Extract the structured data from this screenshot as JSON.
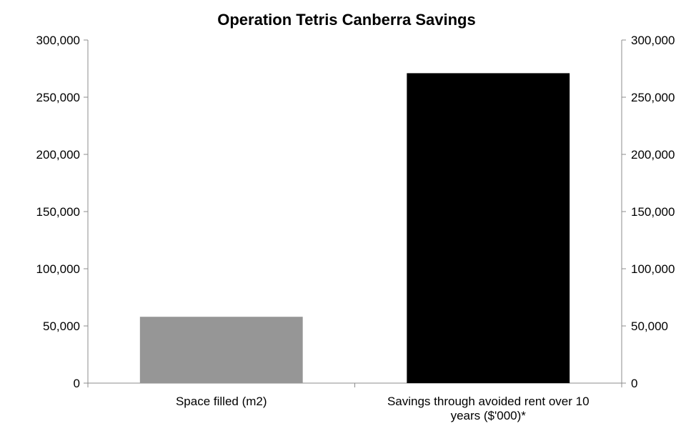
{
  "chart_data": {
    "type": "bar",
    "title": "Operation Tetris Canberra Savings",
    "categories": [
      [
        "Space filled (m2)"
      ],
      [
        "Savings through avoided rent over 10",
        "years ($'000)*"
      ]
    ],
    "series": [
      {
        "values": [
          58000,
          271000
        ],
        "colors": [
          "#969696",
          "#000000"
        ]
      }
    ],
    "ylim": [
      0,
      300000
    ],
    "y_ticks": [
      "0",
      "50,000",
      "100,000",
      "150,000",
      "200,000",
      "250,000",
      "300,000"
    ],
    "y_tick_values": [
      0,
      50000,
      100000,
      150000,
      200000,
      250000,
      300000
    ],
    "secondary_y_ticks": [
      "0",
      "50,000",
      "100,000",
      "150,000",
      "200,000",
      "250,000",
      "300,000"
    ],
    "grid": false,
    "legend": "none"
  }
}
